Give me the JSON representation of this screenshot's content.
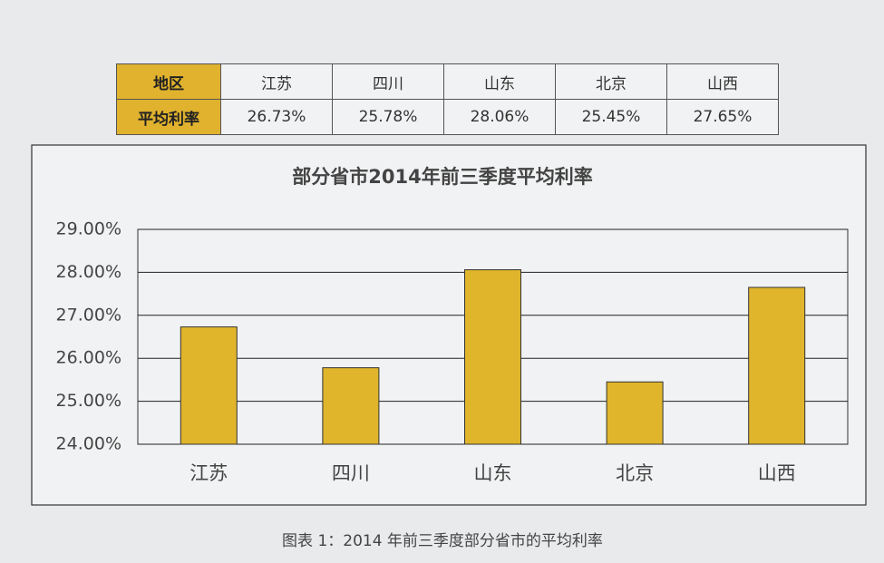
{
  "table": {
    "rows": [
      [
        "地区",
        "江苏",
        "四川",
        "山东",
        "北京",
        "山西"
      ],
      [
        "平均利率",
        "26.73%",
        "25.78%",
        "28.06%",
        "25.45%",
        "27.65%"
      ]
    ]
  },
  "chart_data": {
    "type": "bar",
    "title": "部分省市2014年前三季度平均利率",
    "categories": [
      "江苏",
      "四川",
      "山东",
      "北京",
      "山西"
    ],
    "values": [
      26.73,
      25.78,
      28.06,
      25.45,
      27.65
    ],
    "color": "#e0b52c",
    "ylim": [
      24,
      29
    ],
    "yticks": [
      {
        "value": 24,
        "label": "24.00%"
      },
      {
        "value": 25,
        "label": "25.00%"
      },
      {
        "value": 26,
        "label": "26.00%"
      },
      {
        "value": 27,
        "label": "27.00%"
      },
      {
        "value": 28,
        "label": "28.00%"
      },
      {
        "value": 29,
        "label": "29.00%"
      }
    ],
    "grid": true
  },
  "caption": "图表 1：2014 年前三季度部分省市的平均利率"
}
